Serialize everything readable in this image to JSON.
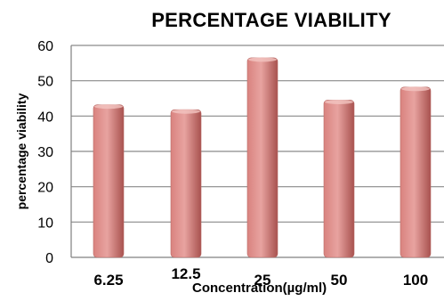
{
  "chart_data": {
    "type": "bar",
    "title": "PERCENTAGE VIABILITY",
    "xlabel": "Concentration(µg/ml)",
    "ylabel": "percentage viability",
    "categories": [
      "6.25",
      "12.5",
      "25",
      "50",
      "100"
    ],
    "values": [
      43.2,
      41.8,
      56.5,
      44.5,
      48.2
    ],
    "ylim": [
      0,
      60
    ],
    "yticks": [
      "0",
      "10",
      "20",
      "30",
      "40",
      "50",
      "60"
    ],
    "grid": true,
    "legend": "none",
    "colors": {
      "bar_light": "#e8a3a0",
      "bar_mid": "#d9837f",
      "bar_dark": "#a8524f",
      "gridline": "#8a8a8a",
      "axis": "#808080"
    }
  }
}
